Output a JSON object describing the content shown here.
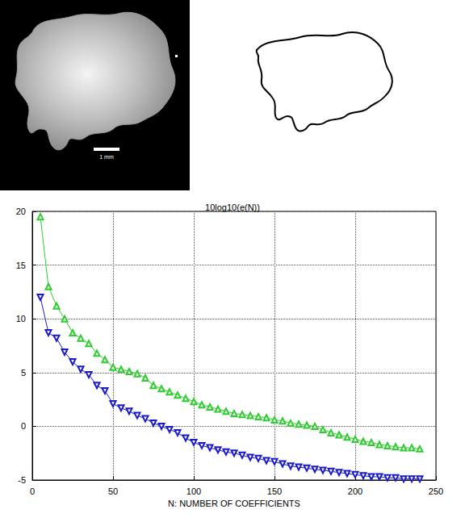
{
  "scale_bar": {
    "label": "1 mm"
  },
  "chart_data": {
    "type": "line",
    "title": "10log10(e(N))",
    "x_label": "N: NUMBER OF COEFFICIENTS",
    "x": [
      5,
      10,
      15,
      20,
      25,
      30,
      35,
      40,
      45,
      50,
      55,
      60,
      65,
      70,
      75,
      80,
      85,
      90,
      95,
      100,
      105,
      110,
      115,
      120,
      125,
      130,
      135,
      140,
      145,
      150,
      155,
      160,
      165,
      170,
      175,
      180,
      185,
      190,
      195,
      200,
      205,
      210,
      215,
      220,
      225,
      230,
      235,
      240
    ],
    "series": [
      {
        "color": "#2ecc2e",
        "marker": "triangle-up",
        "values": [
          19.5,
          13.0,
          11.2,
          10.0,
          8.7,
          8.2,
          7.7,
          6.8,
          6.2,
          5.5,
          5.3,
          5.1,
          4.9,
          4.5,
          3.8,
          3.5,
          3.2,
          2.9,
          2.6,
          2.3,
          2.0,
          1.8,
          1.6,
          1.4,
          1.2,
          1.1,
          1.0,
          0.9,
          0.8,
          0.6,
          0.5,
          0.3,
          0.2,
          0.1,
          0.0,
          -0.3,
          -0.6,
          -0.8,
          -1.0,
          -1.2,
          -1.4,
          -1.5,
          -1.7,
          -1.8,
          -1.9,
          -2.0,
          -2.0,
          -2.1
        ]
      },
      {
        "color": "#1a1acc",
        "marker": "triangle-down",
        "values": [
          12.0,
          8.7,
          8.2,
          6.9,
          6.0,
          5.3,
          4.8,
          3.8,
          3.3,
          2.1,
          1.7,
          1.4,
          1.0,
          0.7,
          0.3,
          0.0,
          -0.3,
          -0.6,
          -1.1,
          -1.5,
          -1.8,
          -2.0,
          -2.2,
          -2.4,
          -2.5,
          -2.7,
          -2.9,
          -3.0,
          -3.2,
          -3.3,
          -3.5,
          -3.7,
          -3.8,
          -3.9,
          -4.0,
          -4.1,
          -4.2,
          -4.3,
          -4.4,
          -4.5,
          -4.6,
          -4.7,
          -4.7,
          -4.8,
          -4.8,
          -4.9,
          -4.9,
          -4.9
        ]
      }
    ],
    "xlim": [
      0,
      250
    ],
    "xticks": [
      0,
      50,
      100,
      150,
      200,
      250
    ],
    "ylim": [
      -5,
      20
    ],
    "yticks": [
      -5,
      0,
      5,
      10,
      15,
      20
    ],
    "grid": true
  }
}
